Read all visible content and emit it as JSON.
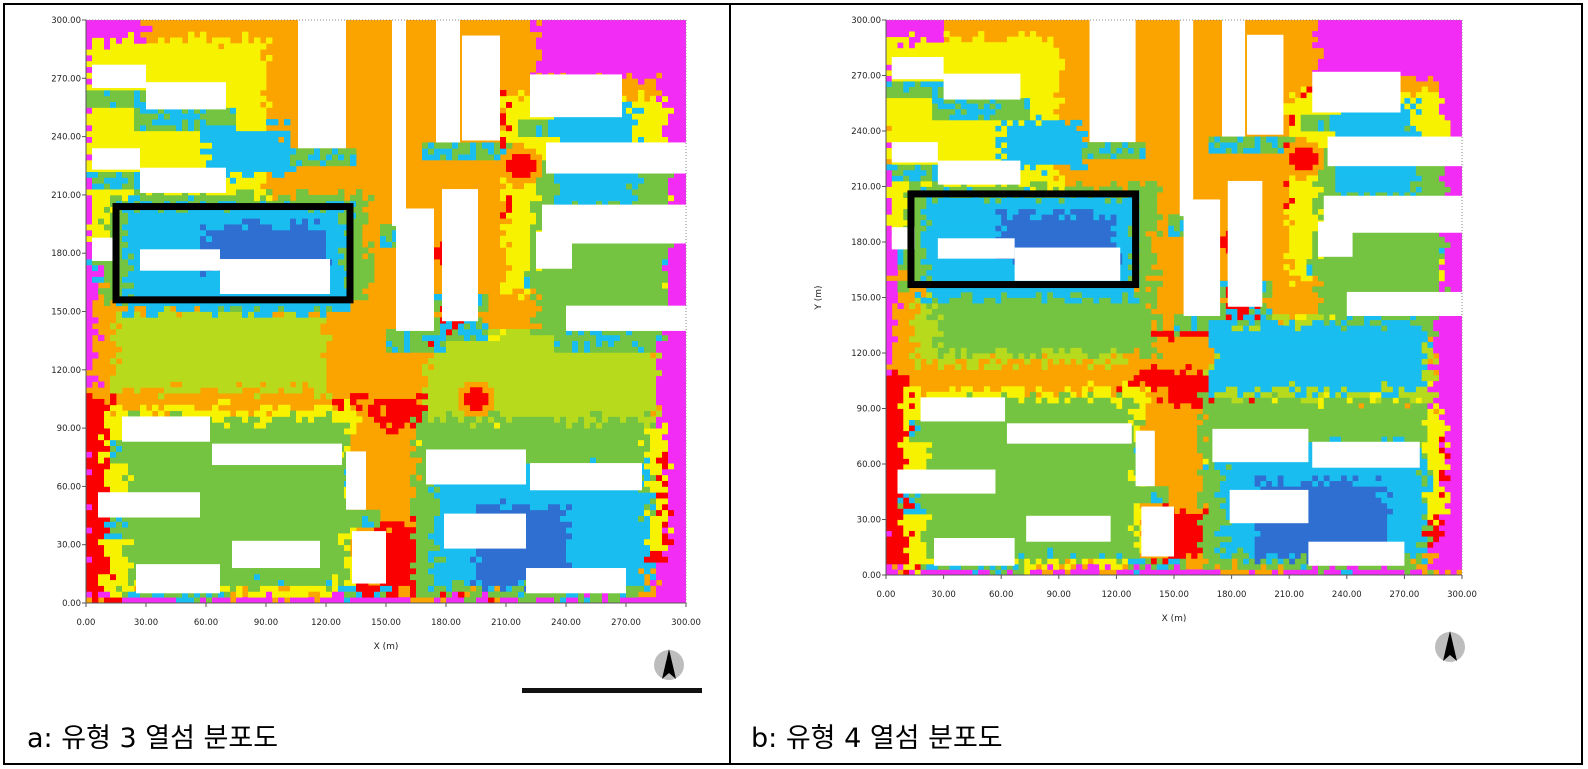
{
  "colors": {
    "white": "#ffffff",
    "blue": "#2f6fd1",
    "cyan": "#19bdf0",
    "green": "#74c442",
    "lime": "#b7db1c",
    "yellow": "#f7f200",
    "orange": "#fba400",
    "red": "#fa0000",
    "magenta": "#f22cf4",
    "box": "#000000"
  },
  "icons": {
    "north_arrow": "north-arrow-icon",
    "scale_bar": "scale-bar"
  },
  "panels": [
    {
      "caption": "a: 유형 3 열섬 분포도",
      "chart_data": {
        "type": "heatmap",
        "xlabel": "X (m)",
        "ylabel": "",
        "xlim": [
          0,
          300
        ],
        "ylim": [
          0,
          300
        ],
        "x_ticks": [
          "0.00",
          "30.00",
          "60.00",
          "90.00",
          "120.00",
          "150.00",
          "180.00",
          "210.00",
          "240.00",
          "270.00",
          "300.00"
        ],
        "y_ticks": [
          "0.00",
          "30.00",
          "60.00",
          "90.00",
          "120.00",
          "150.00",
          "180.00",
          "210.00",
          "240.00",
          "270.00",
          "300.00"
        ],
        "highlight_box": {
          "x": [
            15,
            132
          ],
          "y": [
            156,
            204
          ]
        },
        "buildings": [
          [
            3,
            265,
            30,
            277
          ],
          [
            30,
            254,
            70,
            268
          ],
          [
            3,
            223,
            27,
            234
          ],
          [
            27,
            211,
            70,
            224
          ],
          [
            3,
            176,
            15,
            188
          ],
          [
            27,
            171,
            67,
            182
          ],
          [
            67,
            159,
            122,
            177
          ],
          [
            106,
            234,
            130,
            302
          ],
          [
            153,
            194,
            160,
            302
          ],
          [
            175,
            237,
            187,
            302
          ],
          [
            188,
            238,
            207,
            292
          ],
          [
            155,
            140,
            174,
            203
          ],
          [
            178,
            145,
            196,
            213
          ],
          [
            178,
            160,
            194,
            175
          ],
          [
            225,
            172,
            243,
            191
          ],
          [
            181,
            148,
            191,
            160
          ],
          [
            222,
            250,
            268,
            272
          ],
          [
            230,
            221,
            302,
            237
          ],
          [
            228,
            185,
            302,
            205
          ],
          [
            240,
            140,
            302,
            153
          ],
          [
            18,
            83,
            62,
            96
          ],
          [
            63,
            71,
            128,
            82
          ],
          [
            130,
            48,
            140,
            78
          ],
          [
            6,
            44,
            57,
            57
          ],
          [
            73,
            18,
            117,
            32
          ],
          [
            25,
            5,
            67,
            20
          ],
          [
            133,
            10,
            150,
            37
          ],
          [
            170,
            61,
            220,
            79
          ],
          [
            222,
            58,
            278,
            72
          ],
          [
            179,
            28,
            220,
            46
          ],
          [
            220,
            5,
            270,
            18
          ]
        ],
        "zones": {
          "magenta": [
            [
              -2,
              5,
              -2,
              310
            ],
            [
              285,
              310,
              -2,
              310
            ],
            [
              -2,
              310,
              -2,
              3
            ],
            [
              225,
              310,
              270,
              310
            ],
            [
              -2,
              30,
              270,
              310
            ]
          ],
          "red": [
            [
              -2,
              15,
              3,
              110
            ],
            [
              125,
              190,
              90,
              160
            ],
            [
              210,
              232,
              200,
              260
            ],
            [
              270,
              290,
              20,
              80
            ],
            [
              135,
              210,
              5,
              40
            ]
          ],
          "orange": [
            [
              5,
              220,
              105,
              135
            ],
            [
              60,
              180,
              130,
              180
            ],
            [
              100,
              145,
              10,
              100
            ]
          ],
          "yellow": [
            [
              10,
              135,
              5,
              100
            ],
            [
              170,
              290,
              30,
              90
            ],
            [
              200,
              280,
              90,
              140
            ],
            [
              0,
              90,
              185,
              290
            ],
            [
              210,
              290,
              160,
              260
            ]
          ],
          "lime": [
            [
              15,
              120,
              110,
              150
            ],
            [
              170,
              285,
              90,
              140
            ]
          ],
          "green": [
            [
              20,
              130,
              10,
              95
            ],
            [
              165,
              280,
              5,
              95
            ],
            [
              10,
              140,
              155,
              210
            ],
            [
              225,
              290,
              140,
              230
            ]
          ],
          "cyan": [
            [
              20,
              130,
              150,
              205
            ],
            [
              175,
              280,
              10,
              70
            ],
            [
              235,
              275,
              205,
              255
            ],
            [
              60,
              100,
              220,
              245
            ]
          ],
          "blue": [
            [
              60,
              120,
              170,
              195
            ],
            [
              195,
              240,
              10,
              50
            ]
          ]
        },
        "hotspots": [
          [
            183,
            180,
            8
          ],
          [
            217,
            225,
            7
          ],
          [
            195,
            105,
            6
          ]
        ]
      }
    },
    {
      "caption": "b: 유형 4 열섬 분포도",
      "chart_data": {
        "type": "heatmap",
        "xlabel": "X (m)",
        "ylabel": "Y (m)",
        "xlim": [
          0,
          300
        ],
        "ylim": [
          0,
          300
        ],
        "x_ticks": [
          "0.00",
          "30.00",
          "60.00",
          "90.00",
          "120.00",
          "150.00",
          "180.00",
          "210.00",
          "240.00",
          "270.00",
          "300.00"
        ],
        "y_ticks": [
          "0.00",
          "30.00",
          "60.00",
          "90.00",
          "120.00",
          "150.00",
          "180.00",
          "210.00",
          "240.00",
          "270.00",
          "300.00"
        ],
        "highlight_box": {
          "x": [
            13,
            130
          ],
          "y": [
            157,
            206
          ]
        },
        "buildings": [
          [
            3,
            268,
            30,
            280
          ],
          [
            30,
            257,
            70,
            271
          ],
          [
            3,
            223,
            27,
            234
          ],
          [
            27,
            211,
            70,
            224
          ],
          [
            3,
            176,
            15,
            188
          ],
          [
            27,
            171,
            67,
            182
          ],
          [
            67,
            159,
            122,
            177
          ],
          [
            106,
            234,
            130,
            302
          ],
          [
            153,
            194,
            160,
            302
          ],
          [
            175,
            237,
            187,
            302
          ],
          [
            188,
            238,
            207,
            292
          ],
          [
            155,
            140,
            174,
            203
          ],
          [
            178,
            145,
            196,
            213
          ],
          [
            178,
            160,
            194,
            175
          ],
          [
            225,
            172,
            243,
            191
          ],
          [
            181,
            148,
            191,
            160
          ],
          [
            222,
            250,
            268,
            272
          ],
          [
            230,
            221,
            302,
            237
          ],
          [
            228,
            185,
            302,
            205
          ],
          [
            240,
            140,
            302,
            153
          ],
          [
            18,
            83,
            62,
            96
          ],
          [
            63,
            71,
            128,
            82
          ],
          [
            130,
            48,
            140,
            78
          ],
          [
            6,
            44,
            57,
            57
          ],
          [
            73,
            18,
            117,
            32
          ],
          [
            25,
            5,
            67,
            20
          ],
          [
            133,
            10,
            150,
            37
          ],
          [
            170,
            61,
            220,
            79
          ],
          [
            222,
            58,
            278,
            72
          ],
          [
            179,
            28,
            220,
            46
          ],
          [
            220,
            5,
            270,
            18
          ]
        ],
        "zones": {
          "magenta": [
            [
              -2,
              5,
              -2,
              310
            ],
            [
              285,
              310,
              -2,
              310
            ],
            [
              -2,
              310,
              -2,
              3
            ],
            [
              225,
              310,
              270,
              310
            ],
            [
              -2,
              30,
              270,
              310
            ]
          ],
          "red": [
            [
              -2,
              15,
              3,
              110
            ],
            [
              125,
              190,
              90,
              160
            ],
            [
              210,
              232,
              200,
              260
            ],
            [
              270,
              290,
              20,
              80
            ],
            [
              140,
              180,
              10,
              35
            ]
          ],
          "orange": [
            [
              5,
              220,
              110,
              130
            ],
            [
              60,
              180,
              130,
              170
            ],
            [
              110,
              145,
              20,
              100
            ]
          ],
          "yellow": [
            [
              10,
              135,
              5,
              100
            ],
            [
              170,
              290,
              30,
              90
            ],
            [
              200,
              280,
              90,
              140
            ],
            [
              0,
              90,
              185,
              290
            ],
            [
              210,
              290,
              160,
              260
            ]
          ],
          "lime": [
            [
              15,
              125,
              115,
              150
            ],
            [
              170,
              285,
              95,
              140
            ]
          ],
          "green": [
            [
              20,
              130,
              10,
              95
            ],
            [
              165,
              280,
              5,
              95
            ],
            [
              10,
              140,
              155,
              210
            ],
            [
              225,
              290,
              140,
              230
            ],
            [
              25,
              140,
              120,
              155
            ]
          ],
          "cyan": [
            [
              20,
              130,
              150,
              205
            ],
            [
              175,
              280,
              10,
              70
            ],
            [
              235,
              275,
              205,
              255
            ],
            [
              60,
              100,
              220,
              245
            ],
            [
              170,
              280,
              100,
              135
            ]
          ],
          "blue": [
            [
              60,
              120,
              170,
              195
            ],
            [
              195,
              260,
              10,
              50
            ]
          ]
        },
        "hotspots": [
          [
            183,
            180,
            8
          ],
          [
            217,
            225,
            7
          ]
        ]
      }
    }
  ]
}
